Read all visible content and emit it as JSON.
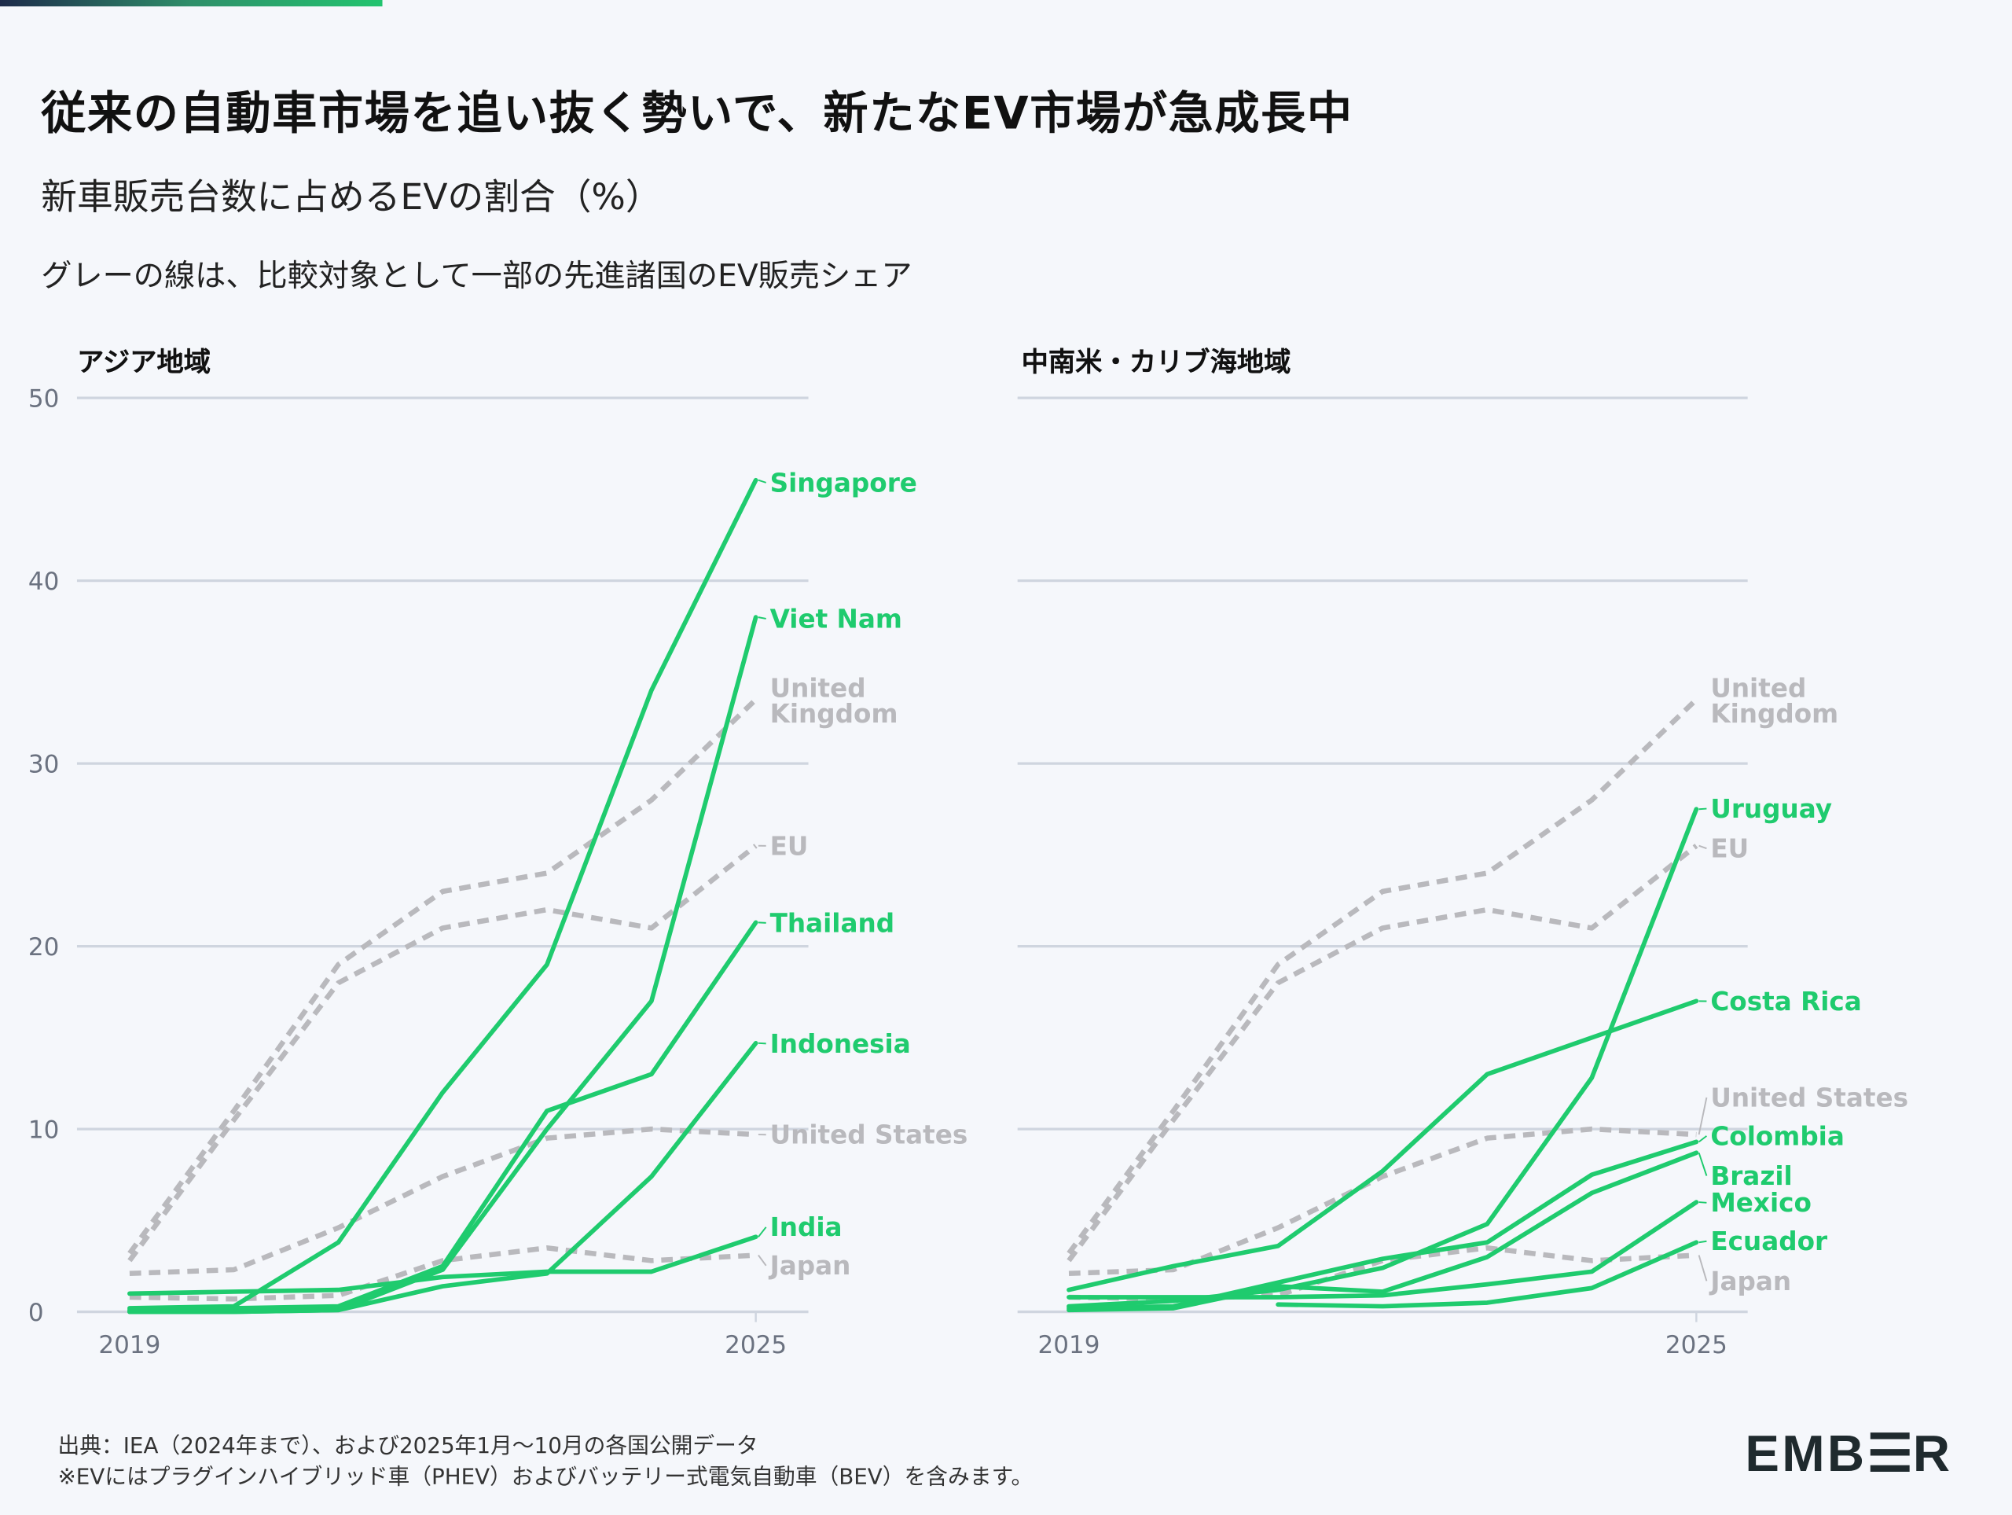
{
  "title": "従来の自動車市場を追い抜く勢いで、新たなEV市場が急成長中",
  "subtitle": "新車販売台数に占めるEVの割合（%）",
  "note": "グレーの線は、比較対象として一部の先進諸国のEV販売シェア",
  "footer": {
    "source": "出典：IEA（2024年まで）、および2025年1月〜10月の各国公開データ",
    "remark": "※EVにはプラグインハイブリッド車（PHEV）およびバッテリー式電気自動車（BEV）を含みます。"
  },
  "logo": "EMBER",
  "colors": {
    "highlight": "#1fcb6e",
    "comparison": "#b9b9bd",
    "grid": "#cfd5df",
    "axis_text": "#6b7280"
  },
  "chart_data": [
    {
      "type": "line",
      "title": "アジア地域",
      "x": [
        2019,
        2020,
        2021,
        2022,
        2023,
        2024,
        2025
      ],
      "xticks": [
        "2019",
        "2025"
      ],
      "yticks": [
        "0",
        "10",
        "20",
        "30",
        "40",
        "50"
      ],
      "ylim": [
        0,
        50
      ],
      "grid": true,
      "series": [
        {
          "name": "United Kingdom",
          "style": "dashed-gray",
          "values": [
            3.2,
            11,
            19,
            23,
            24,
            28,
            33.5
          ]
        },
        {
          "name": "EU",
          "style": "dashed-gray",
          "values": [
            2.8,
            10.5,
            18,
            21,
            22,
            21,
            25.5
          ]
        },
        {
          "name": "United States",
          "style": "dashed-gray",
          "values": [
            2.1,
            2.3,
            4.6,
            7.4,
            9.5,
            10,
            9.7
          ]
        },
        {
          "name": "Japan",
          "style": "dashed-gray",
          "values": [
            0.8,
            0.7,
            0.9,
            2.8,
            3.5,
            2.8,
            3.1
          ]
        },
        {
          "name": "Singapore",
          "style": "solid-green",
          "values": [
            0.2,
            0.3,
            3.8,
            12,
            19,
            34,
            45.5
          ]
        },
        {
          "name": "Viet Nam",
          "style": "solid-green",
          "values": [
            0,
            0,
            0.1,
            2.3,
            10,
            17,
            38
          ]
        },
        {
          "name": "Thailand",
          "style": "solid-green",
          "values": [
            0.1,
            0.2,
            0.3,
            2.5,
            11,
            13,
            21.3
          ]
        },
        {
          "name": "Indonesia",
          "style": "solid-green",
          "values": [
            0,
            0,
            0.1,
            1.4,
            2.1,
            7.4,
            14.7
          ]
        },
        {
          "name": "India",
          "style": "solid-green",
          "values": [
            1.0,
            1.1,
            1.2,
            1.9,
            2.2,
            2.2,
            4.1
          ]
        }
      ]
    },
    {
      "type": "line",
      "title": "中南米・カリブ海地域",
      "x": [
        2019,
        2020,
        2021,
        2022,
        2023,
        2024,
        2025
      ],
      "xticks": [
        "2019",
        "2025"
      ],
      "ylim": [
        0,
        50
      ],
      "grid": true,
      "series": [
        {
          "name": "United Kingdom",
          "style": "dashed-gray",
          "values": [
            3.2,
            11,
            19,
            23,
            24,
            28,
            33.5
          ]
        },
        {
          "name": "EU",
          "style": "dashed-gray",
          "values": [
            2.8,
            10.5,
            18,
            21,
            22,
            21,
            25.5
          ]
        },
        {
          "name": "United States",
          "style": "dashed-gray",
          "values": [
            2.1,
            2.3,
            4.6,
            7.4,
            9.5,
            10,
            9.7
          ]
        },
        {
          "name": "Japan",
          "style": "dashed-gray",
          "values": [
            0.8,
            0.7,
            0.9,
            2.8,
            3.5,
            2.8,
            3.1
          ]
        },
        {
          "name": "Uruguay",
          "style": "solid-green",
          "values": [
            0.3,
            0.6,
            1.2,
            2.4,
            4.8,
            12.8,
            27.5
          ]
        },
        {
          "name": "Costa Rica",
          "style": "solid-green",
          "values": [
            1.2,
            2.5,
            3.6,
            7.7,
            13,
            15,
            17
          ]
        },
        {
          "name": "Colombia",
          "style": "solid-green",
          "values": [
            0.2,
            0.3,
            1.6,
            2.9,
            3.8,
            7.5,
            9.3
          ]
        },
        {
          "name": "Brazil",
          "style": "solid-green",
          "values": [
            0.1,
            0.2,
            1.4,
            1.1,
            3.0,
            6.5,
            8.7
          ]
        },
        {
          "name": "Mexico",
          "style": "solid-green",
          "values": [
            0.8,
            0.8,
            0.8,
            0.9,
            1.5,
            2.2,
            6.0
          ]
        },
        {
          "name": "Ecuador",
          "style": "solid-green",
          "values": [
            null,
            null,
            0.4,
            0.3,
            0.5,
            1.3,
            3.8
          ]
        }
      ]
    }
  ]
}
